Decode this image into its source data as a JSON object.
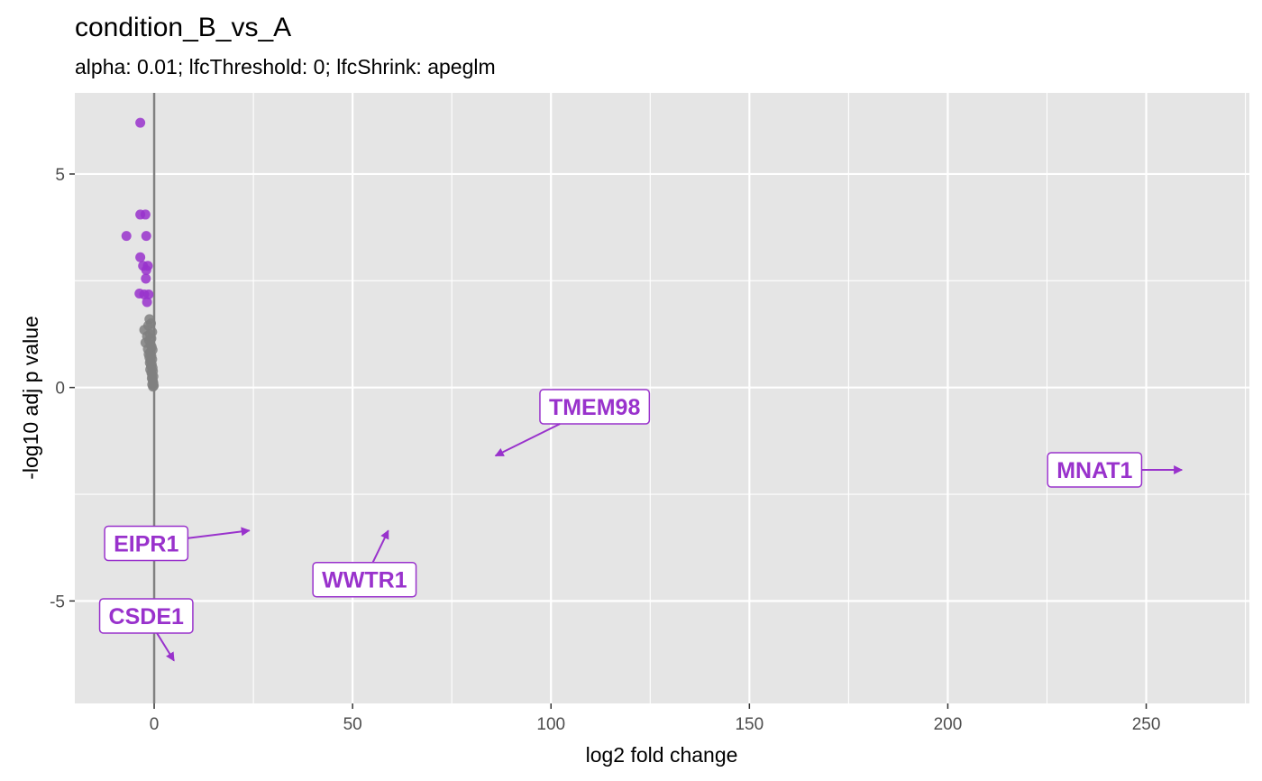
{
  "chart_data": {
    "type": "scatter",
    "title": "condition_B_vs_A",
    "subtitle": "alpha: 0.01;  lfcThreshold: 0;  lfcShrink: apeglm",
    "xlabel": "log2 fold change",
    "ylabel": "-log10 adj p value",
    "xlim": [
      -20,
      276
    ],
    "ylim": [
      -7.4,
      6.9
    ],
    "x_ticks": [
      0,
      50,
      100,
      150,
      200,
      250
    ],
    "x_tick_labels": [
      "0",
      "50",
      "100",
      "150",
      "200",
      "250"
    ],
    "y_ticks": [
      -5,
      0,
      5
    ],
    "y_tick_labels": [
      "-5",
      "0",
      "5"
    ],
    "grid": true,
    "vline_x": 0,
    "colors": {
      "panel": "#e5e5e5",
      "grid": "#ffffff",
      "significant": "#9932cc",
      "nonsignificant": "#808080",
      "label_border": "#9932cc",
      "label_fill": "#ffffff",
      "vline": "#808080"
    },
    "series": [
      {
        "significant": true,
        "points": [
          {
            "x": -3.5,
            "y": 6.2
          },
          {
            "x": -3.5,
            "y": 4.05
          },
          {
            "x": -2.2,
            "y": 4.05
          },
          {
            "x": -7.0,
            "y": 3.55
          },
          {
            "x": -2.0,
            "y": 3.55
          },
          {
            "x": -3.5,
            "y": 3.05
          },
          {
            "x": -2.8,
            "y": 2.85
          },
          {
            "x": -1.6,
            "y": 2.85
          },
          {
            "x": -2.0,
            "y": 2.75
          },
          {
            "x": -2.1,
            "y": 2.55
          },
          {
            "x": -3.7,
            "y": 2.2
          },
          {
            "x": -2.5,
            "y": 2.18
          },
          {
            "x": -1.4,
            "y": 2.18
          },
          {
            "x": -1.8,
            "y": 2.0
          }
        ]
      },
      {
        "significant": false,
        "points": [
          {
            "x": -1.2,
            "y": 1.6
          },
          {
            "x": -0.8,
            "y": 1.5
          },
          {
            "x": -1.5,
            "y": 1.45
          },
          {
            "x": -2.5,
            "y": 1.35
          },
          {
            "x": -0.5,
            "y": 1.3
          },
          {
            "x": -1.1,
            "y": 1.25
          },
          {
            "x": -1.8,
            "y": 1.2
          },
          {
            "x": -0.7,
            "y": 1.15
          },
          {
            "x": -1.3,
            "y": 1.1
          },
          {
            "x": -2.2,
            "y": 1.05
          },
          {
            "x": -0.9,
            "y": 1.0
          },
          {
            "x": -0.6,
            "y": 0.95
          },
          {
            "x": -1.6,
            "y": 0.9
          },
          {
            "x": -0.4,
            "y": 0.88
          },
          {
            "x": -1.0,
            "y": 0.82
          },
          {
            "x": -1.4,
            "y": 0.78
          },
          {
            "x": -0.7,
            "y": 0.74
          },
          {
            "x": -1.2,
            "y": 0.7
          },
          {
            "x": -0.5,
            "y": 0.66
          },
          {
            "x": -0.9,
            "y": 0.62
          },
          {
            "x": -1.1,
            "y": 0.58
          },
          {
            "x": -0.6,
            "y": 0.54
          },
          {
            "x": -0.8,
            "y": 0.5
          },
          {
            "x": -0.4,
            "y": 0.46
          },
          {
            "x": -1.0,
            "y": 0.42
          },
          {
            "x": -0.3,
            "y": 0.38
          },
          {
            "x": -0.7,
            "y": 0.34
          },
          {
            "x": -0.5,
            "y": 0.3
          },
          {
            "x": -0.2,
            "y": 0.26
          },
          {
            "x": -0.6,
            "y": 0.22
          },
          {
            "x": -0.4,
            "y": 0.18
          },
          {
            "x": -0.3,
            "y": 0.14
          },
          {
            "x": -0.2,
            "y": 0.1
          },
          {
            "x": -0.5,
            "y": 0.07
          },
          {
            "x": -0.1,
            "y": 0.04
          },
          {
            "x": -0.3,
            "y": 0.02
          }
        ]
      }
    ],
    "labels": [
      {
        "gene": "TMEM98",
        "x": 86,
        "y": -1.6,
        "label_x": 111,
        "label_y": -0.45
      },
      {
        "gene": "MNAT1",
        "x": 259,
        "y": -1.93,
        "label_x": 237,
        "label_y": -1.93
      },
      {
        "gene": "EIPR1",
        "x": 24,
        "y": -3.35,
        "label_x": -2,
        "label_y": -3.65
      },
      {
        "gene": "WWTR1",
        "x": 59,
        "y": -3.35,
        "label_x": 53,
        "label_y": -4.5
      },
      {
        "gene": "CSDE1",
        "x": 5,
        "y": -6.4,
        "label_x": -2,
        "label_y": -5.35
      }
    ]
  }
}
